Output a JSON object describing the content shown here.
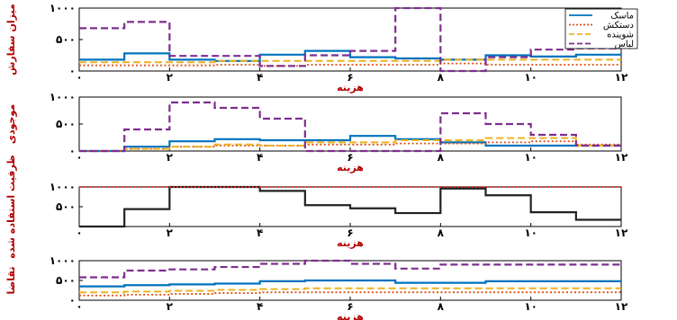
{
  "chart_data": [
    {
      "type": "line",
      "step": true,
      "ylabel": "میزان سفارش",
      "xlabel": "هزینه",
      "xlim": [
        0,
        12
      ],
      "ylim": [
        0,
        1000
      ],
      "xticks": [
        0,
        2,
        4,
        6,
        8,
        10,
        12
      ],
      "xtick_labels": [
        "۰",
        "۲",
        "۴",
        "۶",
        "۸",
        "۱۰",
        "۱۲"
      ],
      "yticks": [
        0,
        500,
        1000
      ],
      "ytick_labels": [
        "۰",
        "۵۰۰",
        "۱۰۰۰"
      ],
      "x_edges": [
        0,
        1,
        2,
        3,
        4,
        5,
        6,
        7,
        8,
        9,
        10,
        11,
        12
      ],
      "series": [
        {
          "name": "ماسک",
          "values": [
            180,
            280,
            180,
            160,
            260,
            320,
            220,
            200,
            180,
            250,
            230,
            260
          ]
        },
        {
          "name": "دستکش",
          "values": [
            90,
            90,
            90,
            100,
            80,
            100,
            100,
            100,
            120,
            100,
            100,
            100
          ]
        },
        {
          "name": "شوینده",
          "values": [
            140,
            140,
            140,
            160,
            160,
            160,
            160,
            160,
            180,
            180,
            180,
            180
          ]
        },
        {
          "name": "لباس",
          "values": [
            680,
            780,
            240,
            240,
            80,
            250,
            320,
            1000,
            0,
            220,
            340,
            360
          ]
        }
      ]
    },
    {
      "type": "line",
      "step": true,
      "ylabel": "موجودی",
      "xlabel": "هزینه",
      "xlim": [
        0,
        12
      ],
      "ylim": [
        0,
        1000
      ],
      "xticks": [
        0,
        2,
        4,
        6,
        8,
        10,
        12
      ],
      "xtick_labels": [
        "۰",
        "۲",
        "۴",
        "۶",
        "۸",
        "۱۰",
        "۱۲"
      ],
      "yticks": [
        0,
        500,
        1000
      ],
      "ytick_labels": [
        "۰",
        "۵۰۰",
        "۱۰۰۰"
      ],
      "x_edges": [
        0,
        1,
        2,
        3,
        4,
        5,
        6,
        7,
        8,
        9,
        10,
        11,
        12
      ],
      "series": [
        {
          "name": "ماسک",
          "values": [
            0,
            80,
            180,
            220,
            200,
            200,
            280,
            220,
            160,
            100,
            100,
            100
          ]
        },
        {
          "name": "دستکش",
          "values": [
            0,
            40,
            80,
            100,
            100,
            120,
            120,
            140,
            140,
            160,
            180,
            120
          ]
        },
        {
          "name": "شوینده",
          "values": [
            0,
            40,
            80,
            120,
            100,
            160,
            160,
            200,
            200,
            240,
            240,
            100
          ]
        },
        {
          "name": "لباس",
          "values": [
            0,
            400,
            900,
            800,
            600,
            0,
            0,
            0,
            700,
            500,
            300,
            100
          ]
        }
      ]
    },
    {
      "type": "line",
      "step": true,
      "ylabel": "ظرفیت استفاده شده",
      "xlabel": "هزینه",
      "xlim": [
        0,
        12
      ],
      "ylim": [
        0,
        1000
      ],
      "xticks": [
        0,
        2,
        4,
        6,
        8,
        10,
        12
      ],
      "xtick_labels": [
        "۰",
        "۲",
        "۴",
        "۶",
        "۸",
        "۱۰",
        "۱۲"
      ],
      "yticks": [
        500,
        1000
      ],
      "ytick_labels": [
        "۵۰۰",
        "۱۰۰۰"
      ],
      "x_edges": [
        0,
        1,
        2,
        3,
        4,
        5,
        6,
        7,
        8,
        9,
        10,
        11,
        12
      ],
      "series": [
        {
          "name": "",
          "values": [
            0,
            440,
            1000,
            1020,
            900,
            540,
            460,
            340,
            960,
            790,
            360,
            170
          ]
        },
        {
          "name": "",
          "values": [
            1000,
            1000,
            1000,
            1000,
            1000,
            1000,
            1000,
            1000,
            1000,
            1000,
            1000,
            1000
          ]
        }
      ]
    },
    {
      "type": "line",
      "step": true,
      "ylabel": "تقاضا",
      "xlabel": "هزینه",
      "xlim": [
        0,
        12
      ],
      "ylim": [
        0,
        1000
      ],
      "xticks": [
        0,
        2,
        4,
        6,
        8,
        10,
        12
      ],
      "xtick_labels": [
        "۰",
        "۲",
        "۴",
        "۶",
        "۸",
        "۱۰",
        "۱۲"
      ],
      "yticks": [
        0,
        500,
        1000
      ],
      "ytick_labels": [
        "۰",
        "۵۰۰",
        "۱۰۰۰"
      ],
      "x_edges": [
        0,
        1,
        2,
        3,
        4,
        5,
        6,
        7,
        8,
        9,
        10,
        11,
        12
      ],
      "series": [
        {
          "name": "ماسک",
          "values": [
            350,
            380,
            400,
            420,
            480,
            500,
            500,
            440,
            440,
            480,
            480,
            480
          ]
        },
        {
          "name": "دستکش",
          "values": [
            120,
            140,
            160,
            180,
            200,
            200,
            200,
            200,
            200,
            200,
            200,
            200
          ]
        },
        {
          "name": "شوینده",
          "values": [
            200,
            220,
            240,
            260,
            280,
            300,
            300,
            300,
            300,
            300,
            300,
            300
          ]
        },
        {
          "name": "لباس",
          "values": [
            580,
            750,
            780,
            840,
            920,
            1000,
            920,
            800,
            900,
            900,
            900,
            900
          ]
        }
      ]
    }
  ],
  "legend": {
    "placement": "top-right",
    "entries": [
      {
        "label": "ماسک",
        "color": "#0072bd",
        "dash": "solid"
      },
      {
        "label": "دستکش",
        "color": "#d95319",
        "dash": "dotted"
      },
      {
        "label": "شوینده",
        "color": "#edb120",
        "dash": "dashed"
      },
      {
        "label": "لباس",
        "color": "#7e2f8e",
        "dash": "dashed"
      }
    ]
  },
  "styles": {
    "series_colors": [
      "#0072bd",
      "#d95319",
      "#edb120",
      "#7e2f8e"
    ],
    "capacity_used_color": "#222222",
    "capacity_limit_color": "#d62728",
    "label_color": "#b00000"
  }
}
